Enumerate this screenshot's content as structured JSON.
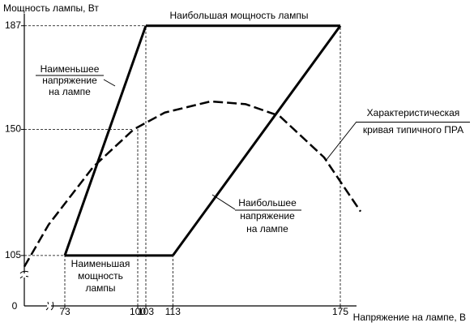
{
  "chart_data": {
    "type": "line",
    "y_label": "Мощность лампы, Вт",
    "x_label": "Напряжение на лампе, В",
    "origin_label": "0",
    "axis_break": true,
    "xlim": [
      58,
      190
    ],
    "ylim": [
      87,
      193
    ],
    "xticks": [
      73,
      100,
      103,
      113,
      175
    ],
    "yticks": [
      105,
      150,
      187
    ],
    "series": [
      {
        "x": [
          73,
          103
        ],
        "values": [
          105,
          187
        ],
        "color": "#000000",
        "dashed": false
      },
      {
        "x": [
          103,
          175
        ],
        "values": [
          187,
          187
        ],
        "color": "#000000",
        "dashed": false
      },
      {
        "x": [
          113,
          175
        ],
        "values": [
          105,
          187
        ],
        "color": "#000000",
        "dashed": false
      },
      {
        "x": [
          73,
          113
        ],
        "values": [
          105,
          105
        ],
        "color": "#000000",
        "dashed": false
      },
      {
        "x": [
          58,
          67,
          83.5,
          98.5,
          110,
          127,
          140,
          152.5,
          169,
          182.5
        ],
        "values": [
          101,
          116,
          136.6,
          150,
          156,
          160,
          159,
          154.8,
          140,
          120.7
        ],
        "color": "#000000",
        "dashed": true
      }
    ],
    "annotations": [
      {
        "lines": [
          "Наибольшая мощность лампы"
        ]
      },
      {
        "lines": [
          "Наименьшее",
          "напряжение",
          "на лампе"
        ]
      },
      {
        "lines": [
          "Характеристическая",
          "кривая типичного ПРА"
        ]
      },
      {
        "lines": [
          "Наибольшее",
          "напряжение",
          "на лампе"
        ]
      },
      {
        "lines": [
          "Наименьшая",
          "мощность",
          "лампы"
        ]
      }
    ]
  }
}
